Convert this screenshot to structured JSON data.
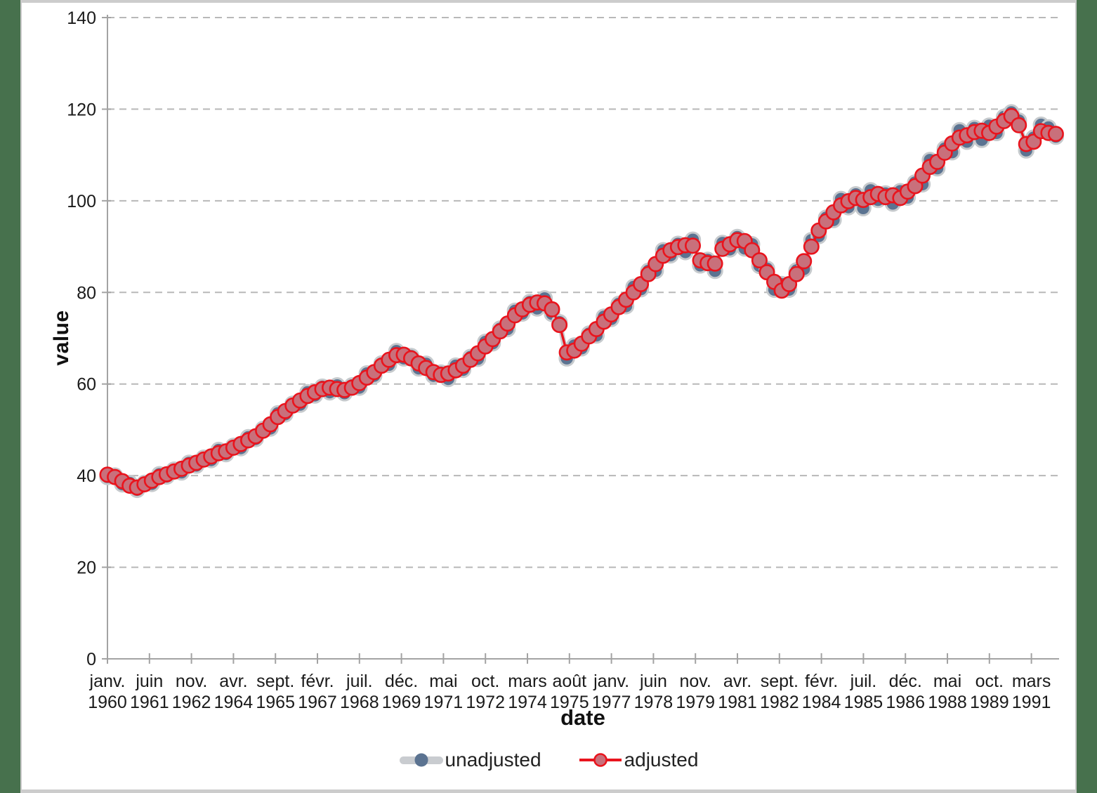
{
  "page": {
    "background_color": "#47714d",
    "panel_color": "#ffffff",
    "frame_color": "#cccccc"
  },
  "chart_data": {
    "type": "line",
    "title": "",
    "xlabel": "date",
    "ylabel": "value",
    "ylim": [
      0,
      140
    ],
    "y_ticks": [
      0,
      20,
      40,
      60,
      80,
      100,
      120,
      140
    ],
    "grid": "horizontal dashed gray",
    "legend_position": "bottom center",
    "x_frequency": "quarterly from janv. 1960 to janv. 1992",
    "x_tick_labels": [
      [
        "janv.",
        "1960"
      ],
      [
        "juin",
        "1961"
      ],
      [
        "nov.",
        "1962"
      ],
      [
        "avr.",
        "1964"
      ],
      [
        "sept.",
        "1965"
      ],
      [
        "févr.",
        "1967"
      ],
      [
        "juil.",
        "1968"
      ],
      [
        "déc.",
        "1969"
      ],
      [
        "mai",
        "1971"
      ],
      [
        "oct.",
        "1972"
      ],
      [
        "mars",
        "1974"
      ],
      [
        "août",
        "1975"
      ],
      [
        "janv.",
        "1977"
      ],
      [
        "juin",
        "1978"
      ],
      [
        "nov.",
        "1979"
      ],
      [
        "avr.",
        "1981"
      ],
      [
        "sept.",
        "1982"
      ],
      [
        "févr.",
        "1984"
      ],
      [
        "juil.",
        "1985"
      ],
      [
        "déc.",
        "1986"
      ],
      [
        "mai",
        "1988"
      ],
      [
        "oct.",
        "1989"
      ],
      [
        "mars",
        "1991"
      ]
    ],
    "colors": {
      "gridline": "#b8b8b8",
      "axis": "#a3a3a3",
      "tick_label": "#1a1a1a"
    },
    "series": [
      {
        "name": "unadjusted",
        "line_color": "#c9ccd0",
        "line_width": 7.5,
        "marker_fill": "#5b7391",
        "marker_stroke": "#c6cacd",
        "marker_stroke_width": 3,
        "marker_radius": 10.2,
        "values": [
          39.7,
          40.0,
          38.1,
          38.4,
          36.9,
          38.4,
          38.2,
          40.3,
          39.8,
          41.3,
          40.7,
          42.8,
          42.2,
          43.9,
          43.4,
          45.6,
          44.7,
          46.5,
          46.0,
          48.4,
          48.0,
          50.2,
          50.3,
          53.6,
          53.4,
          55.7,
          55.5,
          58.2,
          57.5,
          59.4,
          58.2,
          59.7,
          58.0,
          59.7,
          59.2,
          62.3,
          61.8,
          64.5,
          64.2,
          67.2,
          65.6,
          66.1,
          63.4,
          64.4,
          61.8,
          62.5,
          61.1,
          64.0,
          63.1,
          65.9,
          65.5,
          69.2,
          68.9,
          72.1,
          72.0,
          76.0,
          75.4,
          77.9,
          76.5,
          78.7,
          75.3,
          73.5,
          65.6,
          68.4,
          67.8,
          71.0,
          70.6,
          74.7,
          74.2,
          77.5,
          77.0,
          81.2,
          80.7,
          84.7,
          84.7,
          89.2,
          88.1,
          90.6,
          88.8,
          91.5,
          85.9,
          87.1,
          84.7,
          90.8,
          89.4,
          92.1,
          89.6,
          90.5,
          85.8,
          85.2,
          80.6,
          81.8,
          80.6,
          84.8,
          85.1,
          91.4,
          92.3,
          96.3,
          95.8,
          100.4,
          98.6,
          101.4,
          98.4,
          102.3,
          100.2,
          101.6,
          99.4,
          102.1,
          100.7,
          104.0,
          103.6,
          108.9,
          107.1,
          111.4,
          110.6,
          115.4,
          112.9,
          115.9,
          113.3,
          116.4,
          114.8,
          118.3,
          119.3,
          117.5,
          111.0,
          113.8,
          116.6,
          116.0,
          114.0
        ]
      },
      {
        "name": "adjusted",
        "line_color": "#e9141d",
        "line_width": 3.4,
        "marker_fill": "#c9707b",
        "marker_stroke": "#e9141d",
        "marker_stroke_width": 2.6,
        "marker_radius": 10.2,
        "values": [
          40.2,
          39.7,
          38.8,
          37.8,
          37.4,
          38.1,
          38.9,
          39.7,
          40.3,
          40.9,
          41.5,
          42.2,
          42.8,
          43.5,
          44.2,
          44.9,
          45.3,
          46.1,
          46.9,
          47.7,
          48.6,
          49.8,
          51.2,
          52.8,
          54.1,
          55.3,
          56.4,
          57.4,
          58.2,
          58.9,
          59.2,
          58.9,
          58.7,
          59.2,
          60.2,
          61.4,
          62.6,
          64.0,
          65.3,
          66.3,
          66.4,
          65.6,
          64.5,
          63.5,
          62.6,
          62.0,
          62.3,
          63.0,
          64.0,
          65.3,
          66.7,
          68.2,
          69.8,
          71.5,
          73.2,
          75.0,
          76.3,
          77.3,
          77.8,
          77.6,
          76.3,
          72.9,
          66.9,
          67.3,
          68.8,
          70.4,
          72.0,
          73.6,
          75.2,
          76.8,
          78.4,
          80.0,
          81.8,
          84.0,
          86.2,
          88.0,
          89.2,
          89.9,
          90.3,
          90.2,
          87.0,
          86.4,
          86.3,
          89.5,
          90.5,
          91.4,
          91.2,
          89.2,
          87.0,
          84.4,
          82.3,
          80.4,
          81.8,
          84.0,
          86.8,
          90.0,
          93.5,
          95.5,
          97.5,
          99.0,
          99.9,
          100.6,
          100.2,
          100.8,
          101.5,
          100.8,
          101.2,
          100.6,
          102.0,
          103.2,
          105.5,
          107.4,
          108.5,
          110.5,
          112.5,
          113.8,
          114.3,
          115.0,
          115.3,
          114.8,
          116.2,
          117.4,
          118.5,
          116.5,
          112.4,
          112.9,
          115.2,
          114.8,
          114.6
        ]
      }
    ]
  }
}
